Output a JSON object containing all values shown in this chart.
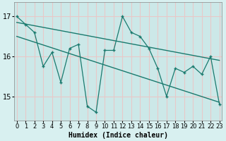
{
  "x": [
    0,
    1,
    2,
    3,
    4,
    5,
    6,
    7,
    8,
    9,
    10,
    11,
    12,
    13,
    14,
    15,
    16,
    17,
    18,
    19,
    20,
    21,
    22,
    23
  ],
  "y": [
    17.0,
    16.8,
    16.6,
    15.75,
    16.1,
    15.35,
    16.2,
    16.3,
    14.75,
    14.6,
    16.15,
    16.15,
    17.0,
    16.6,
    16.5,
    16.2,
    15.7,
    15.0,
    15.7,
    15.6,
    15.75,
    15.55,
    16.0,
    14.8
  ],
  "trend1_x": [
    0,
    23
  ],
  "trend1_y": [
    16.85,
    15.9
  ],
  "trend2_x": [
    0,
    23
  ],
  "trend2_y": [
    16.5,
    14.85
  ],
  "line_color": "#1a7a6e",
  "bg_color": "#d8f0f0",
  "plot_bg": "#cce8e8",
  "grid_color": "#e8c8c8",
  "xlabel": "Humidex (Indice chaleur)",
  "yticks": [
    15,
    16,
    17
  ],
  "xticks": [
    0,
    1,
    2,
    3,
    4,
    5,
    6,
    7,
    8,
    9,
    10,
    11,
    12,
    13,
    14,
    15,
    16,
    17,
    18,
    19,
    20,
    21,
    22,
    23
  ],
  "xlim": [
    -0.3,
    23.3
  ],
  "ylim": [
    14.4,
    17.35
  ],
  "xlabel_fontsize": 7,
  "tick_fontsize": 6
}
